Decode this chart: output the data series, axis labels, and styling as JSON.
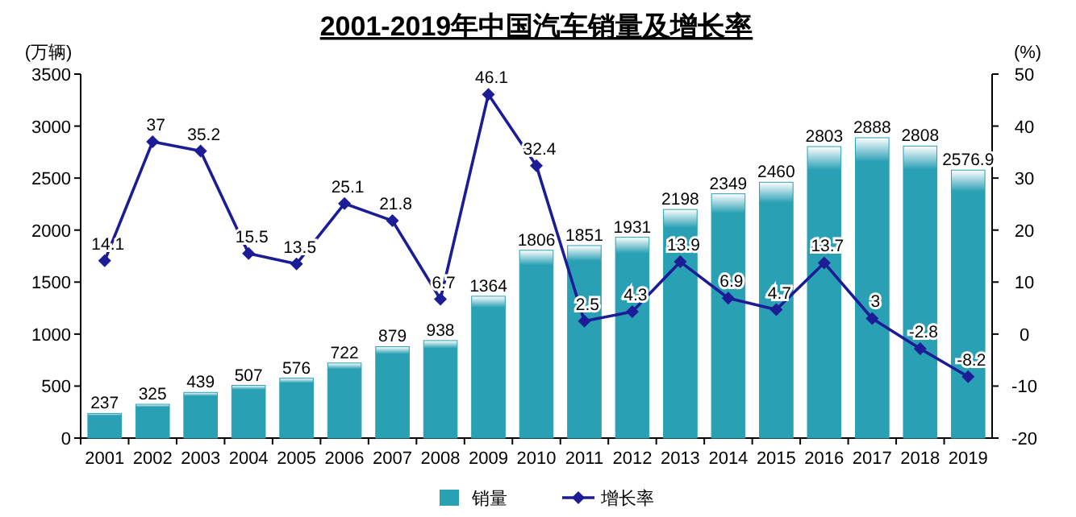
{
  "chart_data": {
    "type": "bar",
    "title": "2001-2019年中国汽车销量及增长率",
    "ylabel": "(万辆)",
    "y2label": "(%)",
    "categories": [
      "2001",
      "2002",
      "2003",
      "2004",
      "2005",
      "2006",
      "2007",
      "2008",
      "2009",
      "2010",
      "2011",
      "2012",
      "2013",
      "2014",
      "2015",
      "2016",
      "2017",
      "2018",
      "2019"
    ],
    "series": [
      {
        "name": "销量",
        "color": "#2aa0b4",
        "values": [
          237,
          325,
          439,
          507,
          576,
          722,
          879,
          938,
          1364,
          1806,
          1851,
          1931,
          2198,
          2349,
          2460,
          2803,
          2888,
          2808,
          2576.9
        ]
      },
      {
        "name": "增长率",
        "type": "line",
        "axis": "y2",
        "color": "#1c1c96",
        "values": [
          14.1,
          37,
          35.2,
          15.5,
          13.5,
          25.1,
          21.8,
          6.7,
          46.1,
          32.4,
          2.5,
          4.3,
          13.9,
          6.9,
          4.7,
          13.7,
          3,
          -2.8,
          -8.2
        ]
      }
    ],
    "ylim": [
      0,
      3500
    ],
    "yticks": [
      0,
      500,
      1000,
      1500,
      2000,
      2500,
      3000,
      3500
    ],
    "y2lim": [
      -20,
      50
    ],
    "y2ticks": [
      -20,
      -10,
      0,
      10,
      20,
      30,
      40,
      50
    ],
    "legend": "bottom",
    "marker": "diamond",
    "data_labels": true
  }
}
